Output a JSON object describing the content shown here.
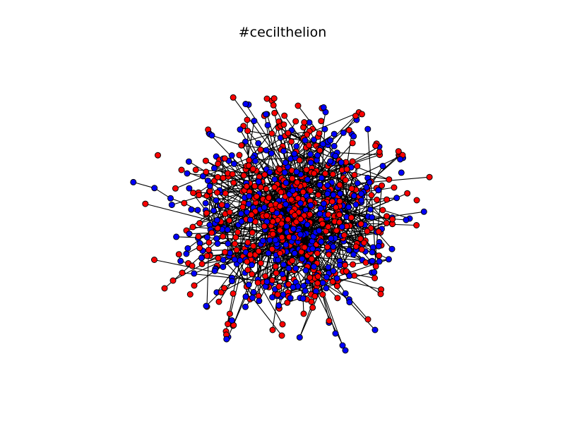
{
  "title": "#cecilthelion",
  "colors": {
    "group_a": "#ff0000",
    "group_b": "#0000ff",
    "edge": "#000000",
    "node_outline": "#000000",
    "background": "#ffffff"
  },
  "diagram": {
    "type": "network-graph",
    "layout": "force-directed",
    "node_groups": [
      "group_a",
      "group_b"
    ],
    "axes_visible": false
  }
}
